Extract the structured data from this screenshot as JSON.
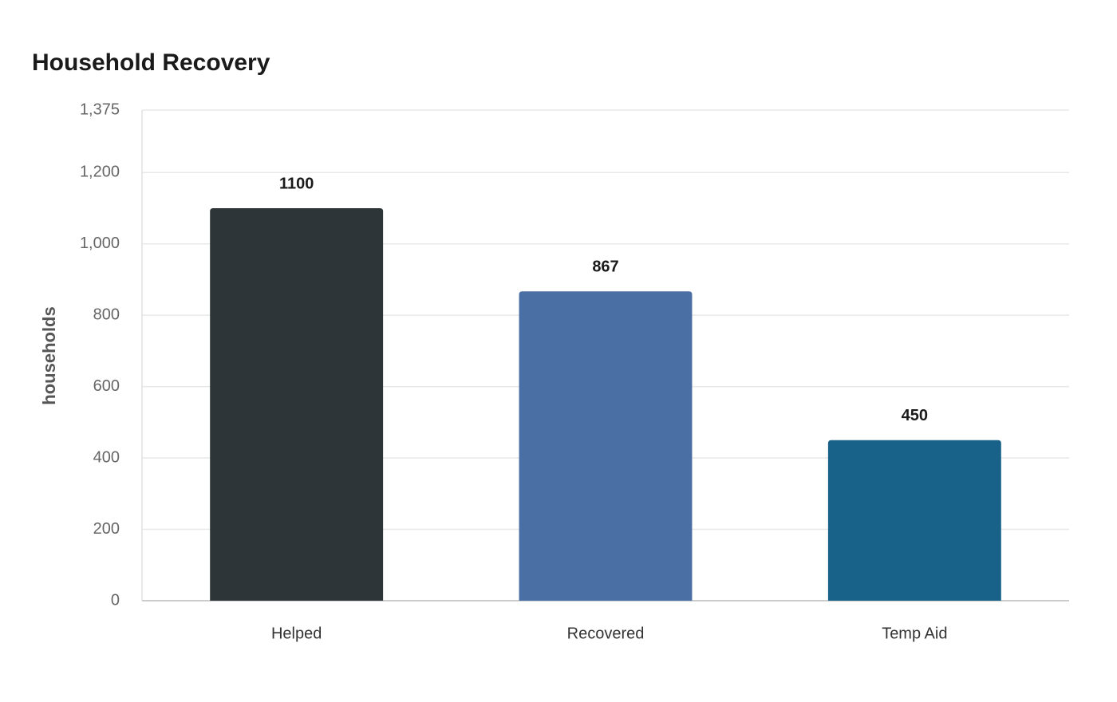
{
  "chart_data": {
    "type": "bar",
    "title": "Household Recovery",
    "y_label": "households",
    "categories": [
      "Helped",
      "Recovered",
      "Temp Aid"
    ],
    "values": [
      1100,
      867,
      450
    ],
    "colors": [
      "#2e3538",
      "#4a6fa5",
      "#18628a"
    ],
    "ylim": [
      0,
      1375
    ],
    "yticks": [
      0,
      200,
      400,
      600,
      800,
      {
        "value": 1000,
        "label": "1,000"
      },
      {
        "value": 1200,
        "label": "1,200"
      },
      {
        "value": 1375,
        "label": "1,375"
      }
    ],
    "grid": true
  }
}
